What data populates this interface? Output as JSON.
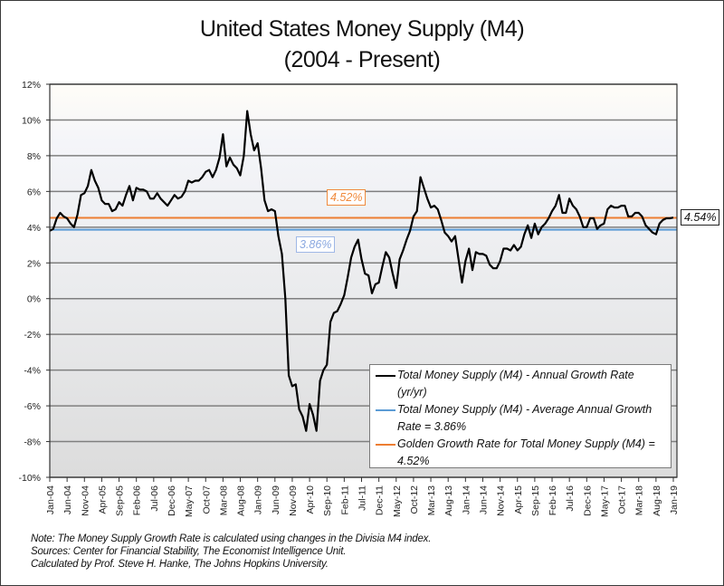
{
  "chart_data": {
    "type": "line",
    "title": "United States Money Supply (M4)",
    "subtitle": "(2004 - Present)",
    "xlabel": "",
    "ylabel": "",
    "ylim": [
      -10,
      12
    ],
    "yticks": [
      -10,
      -8,
      -6,
      -4,
      -2,
      0,
      2,
      4,
      6,
      8,
      10,
      12
    ],
    "ytick_labels": [
      "-10%",
      "-8%",
      "-6%",
      "-4%",
      "-2%",
      "0%",
      "2%",
      "4%",
      "6%",
      "8%",
      "10%",
      "12%"
    ],
    "grid": true,
    "legend_position": "bottom-right",
    "x_start": "Jan-04",
    "x_end": "Jan-19",
    "xtick_labels": [
      "Jan-04",
      "Jun-04",
      "Nov-04",
      "Apr-05",
      "Sep-05",
      "Feb-06",
      "Jul-06",
      "Dec-06",
      "May-07",
      "Oct-07",
      "Mar-08",
      "Aug-08",
      "Jan-09",
      "Jun-09",
      "Nov-09",
      "Apr-10",
      "Sep-10",
      "Feb-11",
      "Jul-11",
      "Dec-11",
      "May-12",
      "Oct-12",
      "Mar-13",
      "Aug-13",
      "Jan-14",
      "Jun-14",
      "Nov-14",
      "Apr-15",
      "Sep-15",
      "Feb-16",
      "Jul-16",
      "Dec-16",
      "May-17",
      "Oct-17",
      "Mar-18",
      "Aug-18",
      "Jan-19"
    ],
    "series": [
      {
        "name": "Total Money Supply (M4) - Annual Growth Rate (yr/yr)",
        "color": "#000000",
        "values": [
          3.8,
          3.9,
          4.5,
          4.8,
          4.6,
          4.5,
          4.2,
          4.0,
          4.7,
          5.8,
          5.9,
          6.3,
          7.2,
          6.6,
          6.2,
          5.5,
          5.3,
          5.3,
          4.9,
          5.0,
          5.4,
          5.2,
          5.8,
          6.3,
          5.5,
          6.2,
          6.1,
          6.1,
          6.0,
          5.6,
          5.6,
          5.9,
          5.6,
          5.4,
          5.2,
          5.5,
          5.8,
          5.6,
          5.7,
          6.0,
          6.6,
          6.5,
          6.6,
          6.6,
          6.8,
          7.1,
          7.2,
          6.8,
          7.2,
          7.9,
          9.2,
          7.4,
          7.9,
          7.5,
          7.3,
          6.9,
          8.0,
          10.5,
          9.2,
          8.3,
          8.7,
          7.3,
          5.5,
          4.9,
          5.0,
          4.9,
          3.5,
          2.5,
          0.0,
          -4.3,
          -4.9,
          -4.8,
          -6.2,
          -6.6,
          -7.4,
          -5.9,
          -6.5,
          -7.4,
          -4.6,
          -4.0,
          -3.7,
          -1.3,
          -0.8,
          -0.7,
          -0.3,
          0.2,
          1.2,
          2.3,
          2.9,
          3.3,
          2.2,
          1.4,
          1.3,
          0.3,
          0.8,
          0.9,
          1.8,
          2.6,
          2.3,
          1.4,
          0.6,
          2.2,
          2.7,
          3.3,
          3.8,
          4.6,
          4.9,
          6.8,
          6.2,
          5.6,
          5.1,
          5.2,
          5.0,
          4.4,
          3.7,
          3.5,
          3.2,
          3.5,
          2.2,
          0.9,
          2.1,
          2.8,
          1.6,
          2.6,
          2.5,
          2.5,
          2.4,
          1.9,
          1.7,
          1.7,
          2.1,
          2.8,
          2.8,
          2.7,
          3.0,
          2.7,
          2.9,
          3.6,
          4.1,
          3.4,
          4.2,
          3.6,
          4.0,
          4.2,
          4.5,
          4.9,
          5.2,
          5.8,
          4.8,
          4.8,
          5.6,
          5.2,
          5.0,
          4.6,
          4.0,
          4.0,
          4.5,
          4.5,
          3.9,
          4.1,
          4.2,
          5.0,
          5.2,
          5.1,
          5.1,
          5.2,
          5.2,
          4.6,
          4.6,
          4.8,
          4.8,
          4.6,
          4.1,
          3.9,
          3.7,
          3.6,
          4.2,
          4.4,
          4.5,
          4.5,
          4.54
        ]
      },
      {
        "name": "Total Money Supply (M4) - Average Annual Growth Rate = 3.86%",
        "color": "#5b9bd5",
        "constant": 3.86
      },
      {
        "name": "Golden Growth Rate for Total Money Supply (M4) = 4.52%",
        "color": "#ed7d31",
        "constant": 4.52
      }
    ],
    "annotations": [
      {
        "text": "4.52%",
        "series": "golden"
      },
      {
        "text": "3.86%",
        "series": "average"
      },
      {
        "text": "4.54%",
        "series": "latest"
      }
    ]
  },
  "legend": {
    "items": [
      {
        "label_l1": "Total Money Supply (M4) - Annual Growth Rate",
        "label_l2": "(yr/yr)",
        "color": "#000000"
      },
      {
        "label_l1": "Total Money Supply (M4) - Average Annual Growth",
        "label_l2": "Rate = 3.86%",
        "color": "#5b9bd5"
      },
      {
        "label_l1": "Golden Growth Rate for Total Money Supply (M4) =",
        "label_l2": "4.52%",
        "color": "#ed7d31"
      }
    ]
  },
  "labels": {
    "golden": "4.52%",
    "average": "3.86%",
    "latest": "4.54%"
  },
  "notes": {
    "line1": "Note: The Money Supply Growth Rate is calculated using changes in the Divisia M4 index.",
    "line2": "Sources: Center for Financial Stability, The Economist Intelligence Unit.",
    "line3": "Calculated by Prof. Steve H. Hanke, The Johns Hopkins University."
  }
}
